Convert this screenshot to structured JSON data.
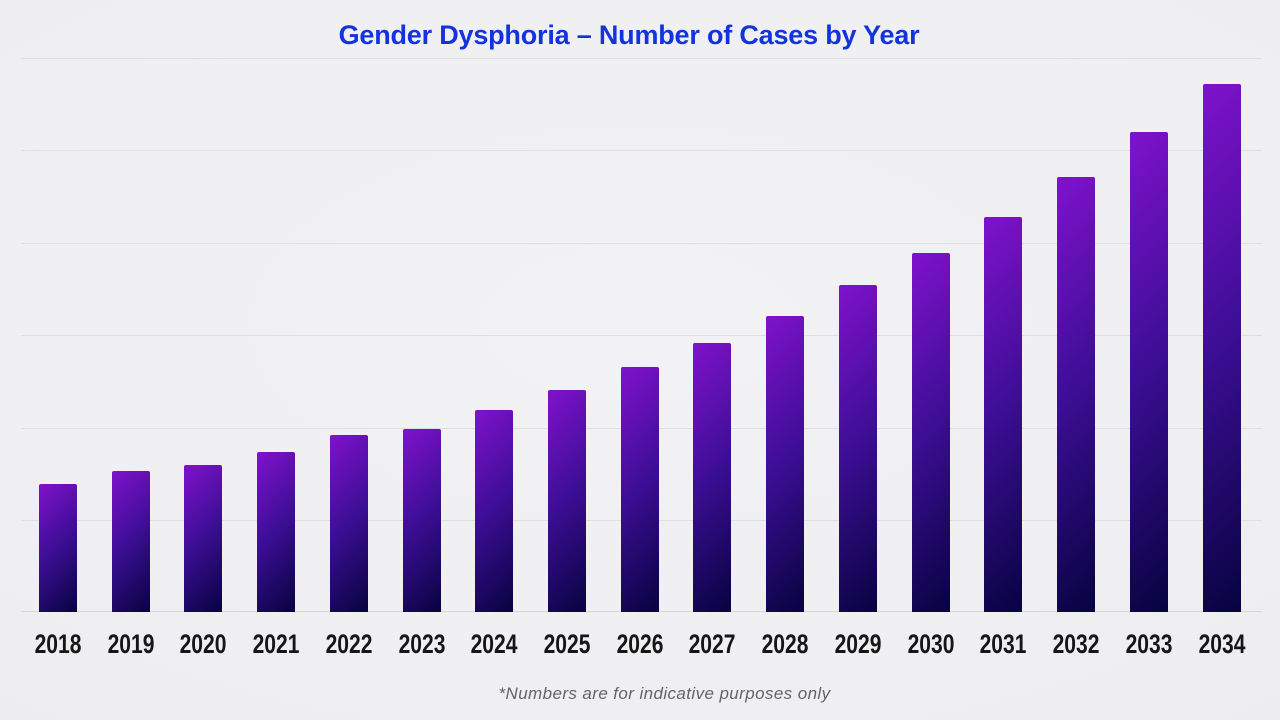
{
  "chart_data": {
    "type": "bar",
    "title": "Gender Dysphoria – Number of Cases by Year",
    "footnote": "*Numbers are for indicative purposes only",
    "categories": [
      "2018",
      "2019",
      "2020",
      "2021",
      "2022",
      "2023",
      "2024",
      "2025",
      "2026",
      "2027",
      "2028",
      "2029",
      "2030",
      "2031",
      "2032",
      "2033",
      "2034"
    ],
    "values": [
      128,
      141,
      147,
      160,
      177,
      183,
      202,
      222,
      245,
      269,
      296,
      327,
      359,
      395,
      435,
      480,
      528
    ],
    "value_unit": "relative height (no numeric y-axis labels shown in chart)",
    "xlabel": "",
    "ylabel": "",
    "ylim": [
      0,
      554
    ],
    "grid": "horizontal",
    "gridline_count": 6,
    "gridline_spacing_px": 92.4,
    "legend": "none",
    "colors": {
      "title": "#1233de",
      "tick_label": "#161616",
      "footnote": "#646464",
      "gridline": "#dfdfe2",
      "axis_line": "#d6d6da",
      "background": "#f0f0f2",
      "bar_gradient_top_left": "#8012cc",
      "bar_gradient_mid": "#3d0e96",
      "bar_gradient_bottom_right": "#06033f"
    }
  }
}
